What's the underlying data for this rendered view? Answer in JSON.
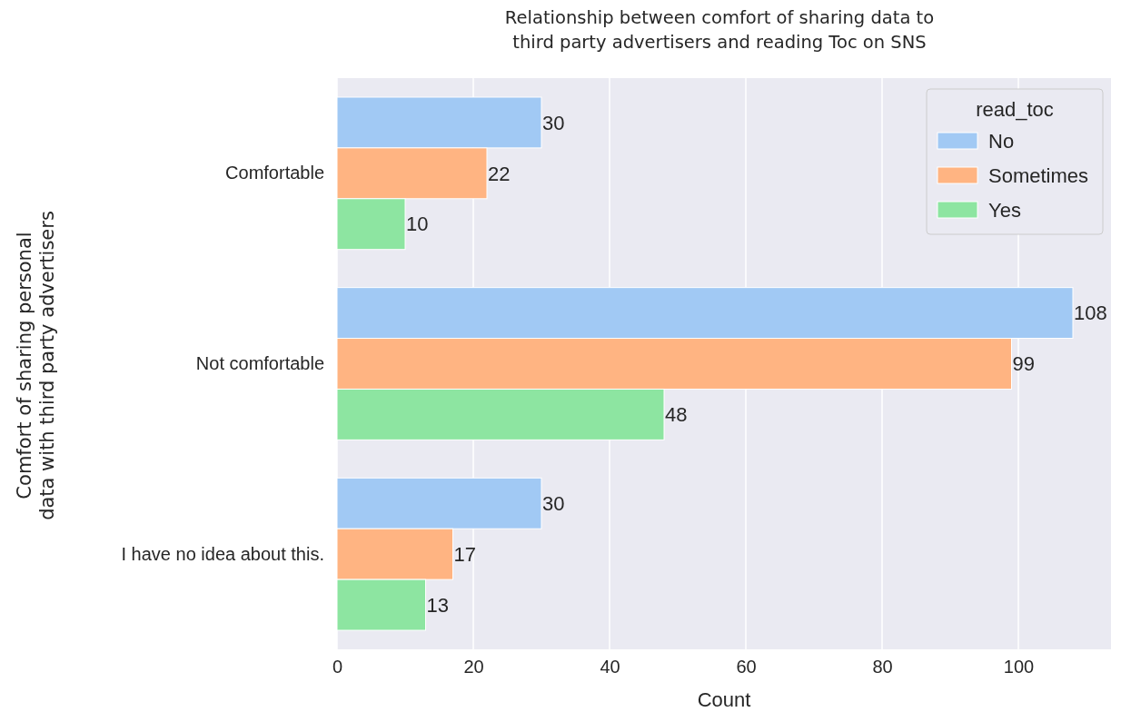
{
  "chart_data": {
    "type": "bar",
    "orientation": "horizontal",
    "title": "Relationship between comfort of sharing data to\nthird party advertisers and reading Toc on SNS",
    "xlabel": "Count",
    "ylabel": "Comfort of sharing personal\ndata with third party advertisers",
    "legend_title": "read_toc",
    "categories": [
      "Comfortable",
      "Not comfortable",
      "I have no idea about this."
    ],
    "series": [
      {
        "name": "No",
        "color": "#a1c9f4",
        "values": [
          30,
          108,
          30
        ]
      },
      {
        "name": "Sometimes",
        "color": "#ffb482",
        "values": [
          22,
          99,
          17
        ]
      },
      {
        "name": "Yes",
        "color": "#8de5a1",
        "values": [
          10,
          48,
          13
        ]
      }
    ],
    "xlim": [
      0,
      113.6
    ],
    "xticks": [
      0,
      20,
      40,
      60,
      80,
      100
    ],
    "grid": "x",
    "legend": "top right",
    "data_labels": true
  }
}
